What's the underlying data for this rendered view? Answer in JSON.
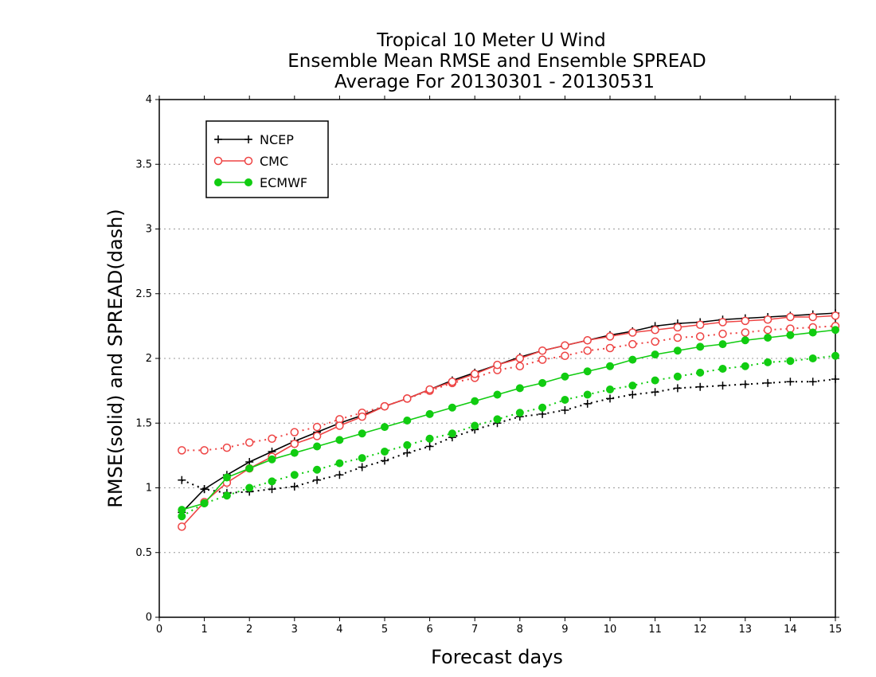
{
  "chart_data": {
    "type": "line",
    "title": [
      "Tropical 10 Meter U Wind",
      "Ensemble Mean RMSE and Ensemble SPREAD",
      "Average For 20130301 - 20130531"
    ],
    "xlabel": "Forecast days",
    "ylabel": "RMSE(solid) and SPREAD(dash)",
    "xlim": [
      0,
      15
    ],
    "ylim": [
      0,
      4
    ],
    "xticks": [
      "0",
      "1",
      "2",
      "3",
      "4",
      "5",
      "6",
      "7",
      "8",
      "9",
      "10",
      "11",
      "12",
      "13",
      "14",
      "15"
    ],
    "yticks": [
      "0",
      "0.5",
      "1",
      "1.5",
      "2",
      "2.5",
      "3",
      "3.5",
      "4"
    ],
    "grid": "horizontal dotted",
    "legend_position": "top-left",
    "x": [
      0.5,
      1,
      1.5,
      2,
      2.5,
      3,
      3.5,
      4,
      4.5,
      5,
      5.5,
      6,
      6.5,
      7,
      7.5,
      8,
      8.5,
      9,
      9.5,
      10,
      10.5,
      11,
      11.5,
      12,
      12.5,
      13,
      13.5,
      14,
      14.5,
      15
    ],
    "series": [
      {
        "name": "NCEP",
        "color": "#000000",
        "marker": "plus",
        "rmse": [
          0.81,
          0.99,
          1.1,
          1.2,
          1.28,
          1.36,
          1.43,
          1.5,
          1.56,
          1.63,
          1.69,
          1.76,
          1.83,
          1.89,
          1.95,
          2.01,
          2.06,
          2.1,
          2.14,
          2.18,
          2.21,
          2.25,
          2.27,
          2.28,
          2.3,
          2.31,
          2.32,
          2.33,
          2.34,
          2.35
        ],
        "spread": [
          1.06,
          0.99,
          0.96,
          0.97,
          0.99,
          1.01,
          1.06,
          1.1,
          1.16,
          1.21,
          1.27,
          1.32,
          1.39,
          1.45,
          1.5,
          1.55,
          1.57,
          1.6,
          1.65,
          1.69,
          1.72,
          1.74,
          1.77,
          1.78,
          1.79,
          1.8,
          1.81,
          1.82,
          1.82,
          1.84
        ]
      },
      {
        "name": "CMC",
        "color": "#ee4444",
        "marker": "open-circle",
        "rmse": [
          0.7,
          0.89,
          1.04,
          1.15,
          1.24,
          1.34,
          1.4,
          1.48,
          1.55,
          1.63,
          1.69,
          1.76,
          1.82,
          1.88,
          1.95,
          2.0,
          2.06,
          2.1,
          2.14,
          2.17,
          2.2,
          2.22,
          2.24,
          2.26,
          2.28,
          2.29,
          2.3,
          2.32,
          2.32,
          2.33
        ],
        "spread": [
          1.29,
          1.29,
          1.31,
          1.35,
          1.38,
          1.43,
          1.47,
          1.53,
          1.58,
          1.63,
          1.69,
          1.75,
          1.81,
          1.85,
          1.91,
          1.94,
          1.99,
          2.02,
          2.06,
          2.08,
          2.11,
          2.13,
          2.16,
          2.17,
          2.19,
          2.2,
          2.22,
          2.23,
          2.24,
          2.25
        ]
      },
      {
        "name": "ECMWF",
        "color": "#11cc11",
        "marker": "filled-circle",
        "rmse": [
          0.83,
          0.88,
          1.08,
          1.15,
          1.22,
          1.27,
          1.32,
          1.37,
          1.42,
          1.47,
          1.52,
          1.57,
          1.62,
          1.67,
          1.72,
          1.77,
          1.81,
          1.86,
          1.9,
          1.94,
          1.99,
          2.03,
          2.06,
          2.09,
          2.11,
          2.14,
          2.16,
          2.18,
          2.2,
          2.22
        ],
        "spread": [
          0.78,
          0.88,
          0.94,
          1.0,
          1.05,
          1.1,
          1.14,
          1.19,
          1.23,
          1.28,
          1.33,
          1.38,
          1.42,
          1.48,
          1.53,
          1.58,
          1.62,
          1.68,
          1.72,
          1.76,
          1.79,
          1.83,
          1.86,
          1.89,
          1.92,
          1.94,
          1.97,
          1.98,
          2.0,
          2.02
        ]
      }
    ]
  }
}
